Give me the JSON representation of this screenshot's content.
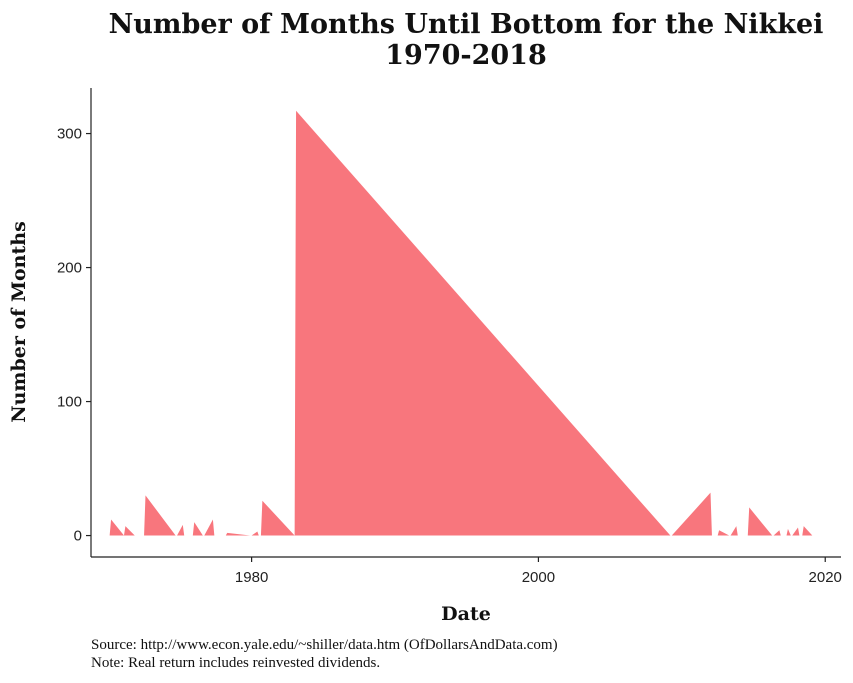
{
  "chart_data": {
    "type": "area",
    "title_lines": [
      "Number of Months Until Bottom for the Nikkei",
      "1970-2018"
    ],
    "xlabel": "Date",
    "ylabel": "Number of Months",
    "xlim": [
      1968.8,
      2021.1
    ],
    "ylim": [
      -16,
      334
    ],
    "x_ticks": [
      1980,
      2000,
      2020
    ],
    "y_ticks": [
      0,
      100,
      200,
      300
    ],
    "grid": false,
    "fill_color": "#f8767d",
    "x": [
      1970.1,
      1970.2,
      1971.1,
      1971.2,
      1971.85,
      1972.5,
      1972.6,
      1974.7,
      1974.8,
      1975.2,
      1975.3,
      1975.9,
      1976.0,
      1976.6,
      1976.7,
      1977.3,
      1977.4,
      1978.2,
      1978.3,
      1979.9,
      1980.0,
      1980.4,
      1980.5,
      1980.65,
      1980.75,
      1983.0,
      1983.1,
      2009.2,
      2009.3,
      2012.0,
      2012.1,
      2012.5,
      2012.6,
      2013.3,
      2013.4,
      2013.8,
      2013.9,
      2014.6,
      2014.7,
      2016.3,
      2016.4,
      2016.8,
      2016.9,
      2017.3,
      2017.4,
      2017.6,
      2017.7,
      2018.1,
      2018.2,
      2018.4,
      2018.5,
      2019.1
    ],
    "y": [
      0,
      12,
      0,
      7,
      0,
      0,
      30,
      0,
      0,
      8,
      0,
      0,
      10,
      0,
      0,
      12,
      0,
      0,
      2,
      0,
      0,
      3,
      0,
      0,
      26,
      0,
      317,
      0,
      0,
      32,
      0,
      0,
      4,
      0,
      0,
      7,
      0,
      0,
      21,
      0,
      0,
      4,
      0,
      0,
      5,
      0,
      0,
      6,
      0,
      0,
      7,
      0
    ],
    "source_line": "Source:  http://www.econ.yale.edu/~shiller/data.htm (OfDollarsAndData.com)",
    "note_line": "Note:  Real return includes reinvested dividends."
  }
}
